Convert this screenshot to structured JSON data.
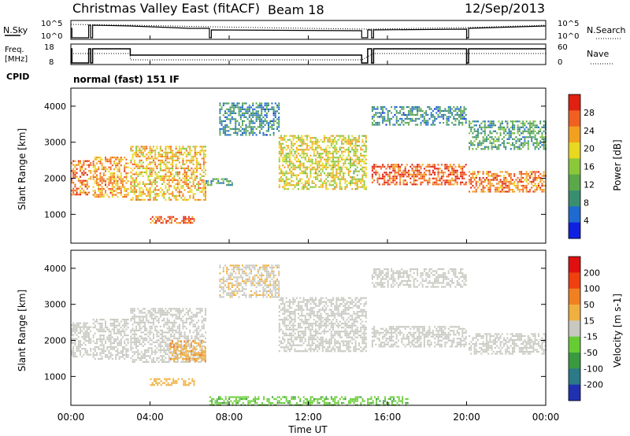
{
  "header": {
    "title": "Christmas Valley East (fitACF)",
    "beam": "Beam 18",
    "date": "12/Sep/2013"
  },
  "status_panels": {
    "nsky": {
      "label": "N.Sky",
      "ticks": [
        "10^5",
        "10^0"
      ],
      "right_label": "N.Search",
      "right_ticks": [
        "10^5",
        "10^0"
      ]
    },
    "freq": {
      "label_line1": "Freq.",
      "label_line2": "[MHz]",
      "ticks": [
        "18",
        "8"
      ],
      "right_label": "Nave",
      "right_ticks": [
        "60",
        "0"
      ]
    },
    "cpid": {
      "label": "CPID",
      "text": "normal (fast) 151 IF"
    }
  },
  "x_axis": {
    "label": "Time UT",
    "ticks": [
      "00:00",
      "04:00",
      "08:00",
      "12:00",
      "16:00",
      "20:00",
      "00:00"
    ],
    "range_hours": [
      0,
      24
    ]
  },
  "chart_data": [
    {
      "type": "heatmap",
      "parameter": "power",
      "x_range_hours": [
        0,
        24
      ],
      "ylabel": "Slant Range [km]",
      "ylim": [
        200,
        4500
      ],
      "y_ticks": [
        1000,
        2000,
        3000,
        4000
      ],
      "colorbar_label": "Power [dB]",
      "colorbar_ticks": [
        "4",
        "8",
        "12",
        "16",
        "20",
        "24",
        "28"
      ],
      "colorbar_range": [
        0,
        30
      ],
      "colors": [
        "#1020e0",
        "#1e6ad0",
        "#3a8e70",
        "#5aa84a",
        "#8ac83a",
        "#e8d820",
        "#f2a020",
        "#f06020",
        "#e02010"
      ],
      "bands": [
        {
          "t": [
            0.0,
            1.0
          ],
          "range": [
            1550,
            2500
          ],
          "value": 24
        },
        {
          "t": [
            1.1,
            2.9
          ],
          "range": [
            1500,
            2600
          ],
          "value": 22
        },
        {
          "t": [
            3.0,
            6.8
          ],
          "range": [
            1400,
            2900
          ],
          "value": 20
        },
        {
          "t": [
            4.0,
            6.2
          ],
          "range": [
            780,
            950
          ],
          "value": 26
        },
        {
          "t": [
            6.8,
            8.2
          ],
          "range": [
            1800,
            2000
          ],
          "value": 10
        },
        {
          "t": [
            7.5,
            10.5
          ],
          "range": [
            3200,
            4100
          ],
          "value": 8
        },
        {
          "t": [
            10.5,
            14.9
          ],
          "range": [
            1700,
            3200
          ],
          "value": 18
        },
        {
          "t": [
            15.2,
            20.0
          ],
          "range": [
            1800,
            2400
          ],
          "value": 26
        },
        {
          "t": [
            15.2,
            20.0
          ],
          "range": [
            3500,
            4000
          ],
          "value": 8
        },
        {
          "t": [
            20.1,
            24.0
          ],
          "range": [
            1600,
            2200
          ],
          "value": 24
        },
        {
          "t": [
            20.1,
            24.0
          ],
          "range": [
            2800,
            3600
          ],
          "value": 10
        }
      ]
    },
    {
      "type": "heatmap",
      "parameter": "velocity",
      "x_range_hours": [
        0,
        24
      ],
      "ylabel": "Slant Range [km]",
      "ylim": [
        200,
        4500
      ],
      "y_ticks": [
        1000,
        2000,
        3000,
        4000
      ],
      "colorbar_label": "Velocity [m s-1]",
      "colorbar_ticks": [
        "200",
        "100",
        "50",
        "15",
        "-15",
        "-50",
        "-100",
        "-200"
      ],
      "colorbar_range": [
        -250,
        250
      ],
      "colors": [
        "#2030b0",
        "#2a7a88",
        "#3a9a40",
        "#66cc33",
        "#c8c8c0",
        "#f0b040",
        "#f08020",
        "#f04010",
        "#e01010"
      ],
      "bands": [
        {
          "t": [
            0.0,
            1.0
          ],
          "range": [
            1550,
            2500
          ],
          "value": 0
        },
        {
          "t": [
            1.1,
            2.9
          ],
          "range": [
            1500,
            2600
          ],
          "value": 0
        },
        {
          "t": [
            3.0,
            6.8
          ],
          "range": [
            1400,
            2900
          ],
          "value": 0
        },
        {
          "t": [
            5.0,
            6.8
          ],
          "range": [
            1400,
            2000
          ],
          "value": 70
        },
        {
          "t": [
            4.0,
            6.2
          ],
          "range": [
            780,
            950
          ],
          "value": 60
        },
        {
          "t": [
            7.5,
            10.5
          ],
          "range": [
            3200,
            4100
          ],
          "value": 20
        },
        {
          "t": [
            10.5,
            14.9
          ],
          "range": [
            1700,
            3200
          ],
          "value": 0
        },
        {
          "t": [
            15.2,
            20.0
          ],
          "range": [
            1800,
            2400
          ],
          "value": 0
        },
        {
          "t": [
            15.2,
            20.0
          ],
          "range": [
            3500,
            4000
          ],
          "value": 0
        },
        {
          "t": [
            20.1,
            24.0
          ],
          "range": [
            1600,
            2200
          ],
          "value": 0
        },
        {
          "t": [
            7.0,
            17.0
          ],
          "range": [
            200,
            450
          ],
          "value": -70
        }
      ]
    }
  ]
}
